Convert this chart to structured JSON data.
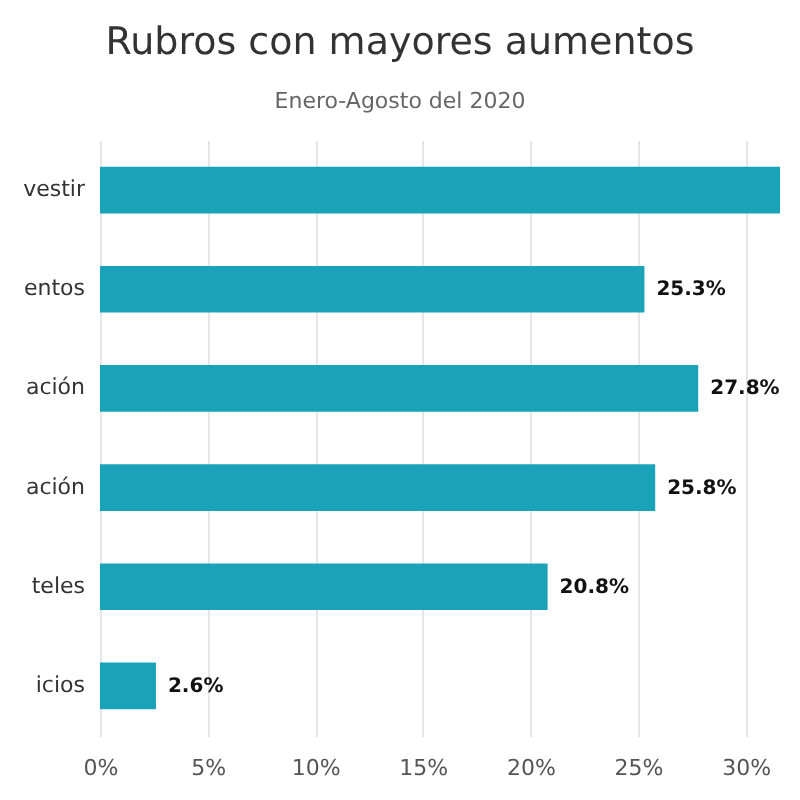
{
  "chart_data": {
    "type": "bar",
    "orientation": "horizontal",
    "title": "Rubros con mayores aumentos",
    "subtitle": "Enero-Agosto del 2020",
    "categories": [
      "vestir",
      "entos",
      "ación",
      "ación",
      "teles",
      "icios"
    ],
    "values": [
      31.6,
      25.3,
      27.8,
      25.8,
      20.8,
      2.6
    ],
    "value_labels": [
      null,
      "25.3%",
      "27.8%",
      "25.8%",
      "20.8%",
      "2.6%"
    ],
    "color": "#1aa3b8",
    "xlim": [
      0,
      31.6
    ],
    "xticks": [
      {
        "value": 0,
        "label": "0%"
      },
      {
        "value": 5,
        "label": "5%"
      },
      {
        "value": 10,
        "label": "10%"
      },
      {
        "value": 15,
        "label": "15%"
      },
      {
        "value": 20,
        "label": "20%"
      },
      {
        "value": 25,
        "label": "25%"
      },
      {
        "value": 30,
        "label": "30%"
      }
    ],
    "grid": "x"
  }
}
